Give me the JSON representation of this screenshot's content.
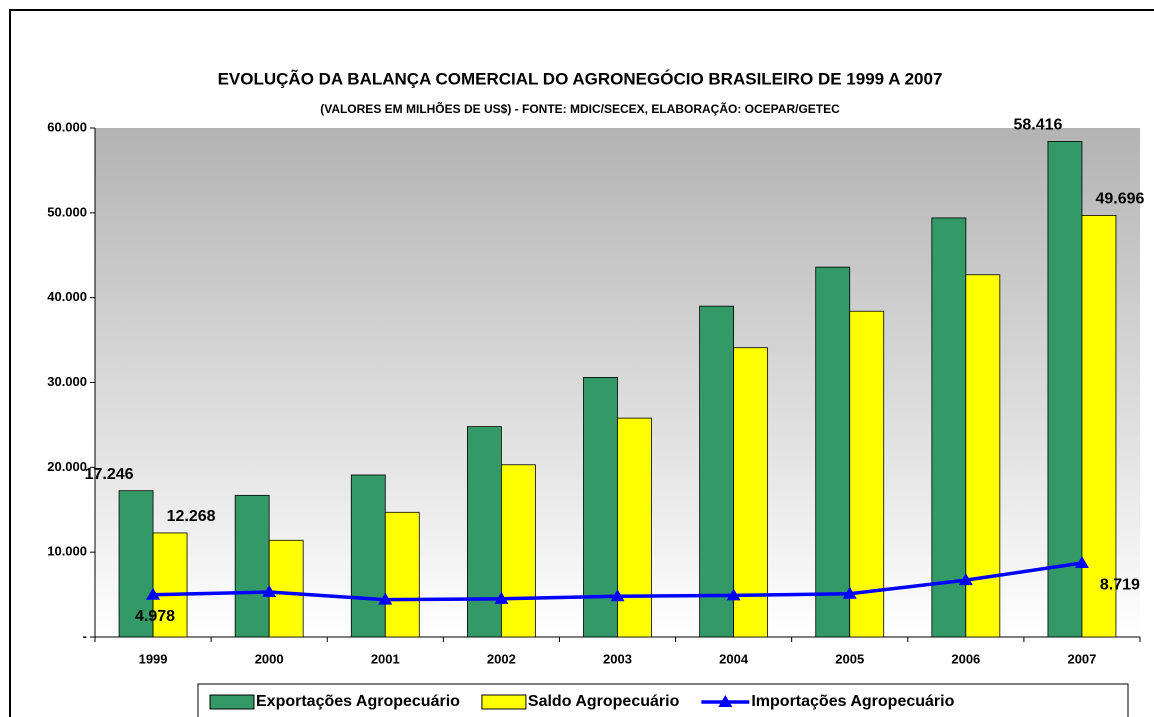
{
  "chart_data": {
    "type": "bar",
    "title": "EVOLUÇÃO DA BALANÇA COMERCIAL DO AGRONEGÓCIO BRASILEIRO DE 1999 A 2007",
    "subtitle": "(VALORES EM MILHÕES DE US$) - FONTE: MDIC/SECEX, ELABORAÇÃO: OCEPAR/GETEC",
    "categories": [
      "1999",
      "2000",
      "2001",
      "2002",
      "2003",
      "2004",
      "2005",
      "2006",
      "2007"
    ],
    "series": [
      {
        "name": "Exportações Agropecuário",
        "type": "bar",
        "color": "#339966",
        "values": [
          17246,
          16700,
          19100,
          24800,
          30600,
          39000,
          43600,
          49400,
          58416
        ],
        "value_labels": [
          "17.246",
          null,
          null,
          null,
          null,
          null,
          null,
          null,
          "58.416"
        ]
      },
      {
        "name": "Saldo Agropecuário",
        "type": "bar",
        "color": "#ffff00",
        "values": [
          12268,
          11400,
          14700,
          20300,
          25800,
          34100,
          38400,
          42700,
          49696
        ],
        "value_labels": [
          "12.268",
          null,
          null,
          null,
          null,
          null,
          null,
          null,
          "49.696"
        ]
      },
      {
        "name": "Importações Agropecuário",
        "type": "line",
        "color": "#0000ff",
        "values": [
          4978,
          5300,
          4400,
          4500,
          4800,
          4900,
          5100,
          6700,
          8719
        ],
        "value_labels": [
          "4.978",
          null,
          null,
          null,
          null,
          null,
          null,
          null,
          "8.719"
        ]
      }
    ],
    "ylim": [
      0,
      60000
    ],
    "yticks": [
      {
        "value": 0,
        "label": "-"
      },
      {
        "value": 10000,
        "label": "10.000"
      },
      {
        "value": 20000,
        "label": "20.000"
      },
      {
        "value": 30000,
        "label": "30.000"
      },
      {
        "value": 40000,
        "label": "40.000"
      },
      {
        "value": 50000,
        "label": "50.000"
      },
      {
        "value": 60000,
        "label": "60.000"
      }
    ],
    "legend": "bottom"
  }
}
